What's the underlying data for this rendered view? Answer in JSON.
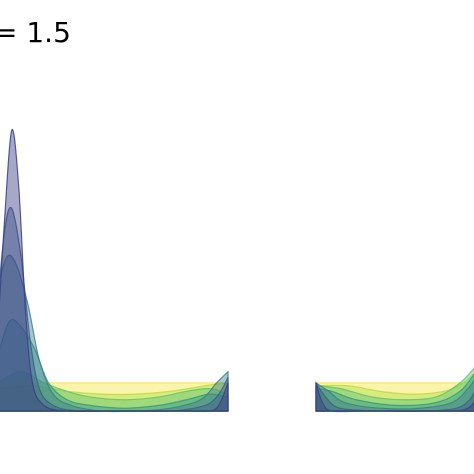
{
  "chart_data": {
    "type": "area",
    "title": "= 1.5",
    "xlabel": "",
    "ylabel": "",
    "grid": false,
    "legend": "none",
    "panels": [
      {
        "name": "",
        "xlim": [
          0,
          1
        ],
        "ylim": [
          0,
          1
        ],
        "series": [
          {
            "color": "#3b3f82",
            "values": [
              [
                0.0,
                0.3
              ],
              [
                0.03,
                0.7
              ],
              [
                0.06,
                1.0
              ],
              [
                0.09,
                0.8
              ],
              [
                0.12,
                0.35
              ],
              [
                0.15,
                0.1
              ],
              [
                0.2,
                0.02
              ],
              [
                0.3,
                0.0
              ],
              [
                0.5,
                0.0
              ],
              [
                0.7,
                0.0
              ],
              [
                0.85,
                0.0
              ],
              [
                0.92,
                0.0
              ],
              [
                0.96,
                0.02
              ],
              [
                1.0,
                0.1
              ]
            ]
          },
          {
            "color": "#3b5f8c",
            "values": [
              [
                0.0,
                0.4
              ],
              [
                0.03,
                0.65
              ],
              [
                0.06,
                0.72
              ],
              [
                0.1,
                0.55
              ],
              [
                0.14,
                0.25
              ],
              [
                0.18,
                0.08
              ],
              [
                0.24,
                0.02
              ],
              [
                0.35,
                0.0
              ],
              [
                0.55,
                0.0
              ],
              [
                0.75,
                0.0
              ],
              [
                0.9,
                0.02
              ],
              [
                0.96,
                0.06
              ],
              [
                1.0,
                0.12
              ]
            ]
          },
          {
            "color": "#3d7f8c",
            "values": [
              [
                0.0,
                0.45
              ],
              [
                0.04,
                0.55
              ],
              [
                0.08,
                0.52
              ],
              [
                0.13,
                0.38
              ],
              [
                0.18,
                0.18
              ],
              [
                0.24,
                0.06
              ],
              [
                0.32,
                0.02
              ],
              [
                0.45,
                0.0
              ],
              [
                0.6,
                0.0
              ],
              [
                0.75,
                0.01
              ],
              [
                0.88,
                0.04
              ],
              [
                0.95,
                0.1
              ],
              [
                1.0,
                0.14
              ]
            ]
          },
          {
            "color": "#2f9a8a",
            "values": [
              [
                0.0,
                0.2
              ],
              [
                0.05,
                0.32
              ],
              [
                0.1,
                0.3
              ],
              [
                0.16,
                0.22
              ],
              [
                0.22,
                0.1
              ],
              [
                0.3,
                0.04
              ],
              [
                0.4,
                0.02
              ],
              [
                0.55,
                0.01
              ],
              [
                0.7,
                0.02
              ],
              [
                0.82,
                0.04
              ],
              [
                0.92,
                0.06
              ],
              [
                1.0,
                0.05
              ]
            ]
          },
          {
            "color": "#5cc476",
            "values": [
              [
                0.0,
                0.1
              ],
              [
                0.1,
                0.14
              ],
              [
                0.2,
                0.1
              ],
              [
                0.3,
                0.07
              ],
              [
                0.4,
                0.05
              ],
              [
                0.55,
                0.04
              ],
              [
                0.7,
                0.05
              ],
              [
                0.82,
                0.07
              ],
              [
                0.92,
                0.08
              ],
              [
                1.0,
                0.06
              ]
            ]
          },
          {
            "color": "#b5dd40",
            "values": [
              [
                0.0,
                0.08
              ],
              [
                0.15,
                0.09
              ],
              [
                0.3,
                0.07
              ],
              [
                0.45,
                0.06
              ],
              [
                0.6,
                0.06
              ],
              [
                0.75,
                0.07
              ],
              [
                0.9,
                0.09
              ],
              [
                1.0,
                0.1
              ]
            ]
          },
          {
            "color": "#f5e74a",
            "values": [
              [
                0.0,
                0.1
              ],
              [
                0.2,
                0.1
              ],
              [
                0.4,
                0.1
              ],
              [
                0.6,
                0.1
              ],
              [
                0.8,
                0.1
              ],
              [
                1.0,
                0.1
              ]
            ]
          }
        ]
      },
      {
        "name": "",
        "xlim": [
          0,
          1
        ],
        "ylim": [
          0,
          1
        ],
        "series": [
          {
            "color": "#3b3f82",
            "values": [
              [
                0.0,
                0.1
              ],
              [
                0.04,
                0.03
              ],
              [
                0.1,
                0.0
              ],
              [
                0.3,
                0.0
              ],
              [
                0.6,
                0.0
              ],
              [
                0.85,
                0.0
              ],
              [
                0.95,
                0.01
              ],
              [
                1.0,
                0.04
              ]
            ]
          },
          {
            "color": "#3b5f8c",
            "values": [
              [
                0.0,
                0.1
              ],
              [
                0.06,
                0.05
              ],
              [
                0.15,
                0.01
              ],
              [
                0.4,
                0.0
              ],
              [
                0.7,
                0.0
              ],
              [
                0.88,
                0.01
              ],
              [
                0.96,
                0.04
              ],
              [
                1.0,
                0.08
              ]
            ]
          },
          {
            "color": "#3d7f8c",
            "values": [
              [
                0.0,
                0.1
              ],
              [
                0.08,
                0.07
              ],
              [
                0.18,
                0.03
              ],
              [
                0.4,
                0.01
              ],
              [
                0.65,
                0.01
              ],
              [
                0.85,
                0.03
              ],
              [
                0.95,
                0.08
              ],
              [
                1.0,
                0.12
              ]
            ]
          },
          {
            "color": "#2f9a8a",
            "values": [
              [
                0.0,
                0.08
              ],
              [
                0.1,
                0.07
              ],
              [
                0.25,
                0.04
              ],
              [
                0.5,
                0.02
              ],
              [
                0.75,
                0.03
              ],
              [
                0.9,
                0.07
              ],
              [
                1.0,
                0.14
              ]
            ]
          },
          {
            "color": "#5cc476",
            "values": [
              [
                0.0,
                0.09
              ],
              [
                0.15,
                0.08
              ],
              [
                0.35,
                0.05
              ],
              [
                0.55,
                0.04
              ],
              [
                0.75,
                0.05
              ],
              [
                0.9,
                0.1
              ],
              [
                1.0,
                0.16
              ]
            ]
          },
          {
            "color": "#b5dd40",
            "values": [
              [
                0.0,
                0.09
              ],
              [
                0.2,
                0.09
              ],
              [
                0.4,
                0.07
              ],
              [
                0.6,
                0.06
              ],
              [
                0.8,
                0.07
              ],
              [
                0.92,
                0.1
              ],
              [
                1.0,
                0.14
              ]
            ]
          },
          {
            "color": "#f5e74a",
            "values": [
              [
                0.0,
                0.1
              ],
              [
                0.25,
                0.1
              ],
              [
                0.5,
                0.1
              ],
              [
                0.75,
                0.1
              ],
              [
                1.0,
                0.1
              ]
            ]
          }
        ]
      }
    ]
  }
}
